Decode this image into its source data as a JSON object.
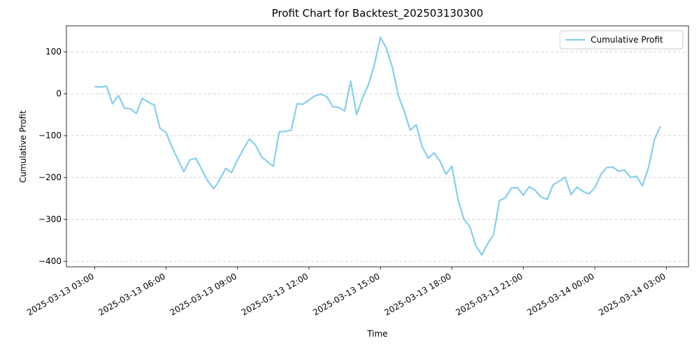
{
  "chart_data": {
    "type": "line",
    "title": "Profit Chart for Backtest_202503130300",
    "x_label": "Time",
    "y_label": "Cumulative Profit",
    "x": [
      "2025-03-13 03:00",
      "2025-03-13 03:15",
      "2025-03-13 03:30",
      "2025-03-13 03:45",
      "2025-03-13 04:00",
      "2025-03-13 04:15",
      "2025-03-13 04:30",
      "2025-03-13 04:45",
      "2025-03-13 05:00",
      "2025-03-13 05:15",
      "2025-03-13 05:30",
      "2025-03-13 05:45",
      "2025-03-13 06:00",
      "2025-03-13 06:15",
      "2025-03-13 06:30",
      "2025-03-13 06:45",
      "2025-03-13 07:00",
      "2025-03-13 07:15",
      "2025-03-13 07:30",
      "2025-03-13 07:45",
      "2025-03-13 08:00",
      "2025-03-13 08:15",
      "2025-03-13 08:30",
      "2025-03-13 08:45",
      "2025-03-13 09:00",
      "2025-03-13 09:15",
      "2025-03-13 09:30",
      "2025-03-13 09:45",
      "2025-03-13 10:00",
      "2025-03-13 10:15",
      "2025-03-13 10:30",
      "2025-03-13 10:45",
      "2025-03-13 11:00",
      "2025-03-13 11:15",
      "2025-03-13 11:30",
      "2025-03-13 11:45",
      "2025-03-13 12:00",
      "2025-03-13 12:15",
      "2025-03-13 12:30",
      "2025-03-13 12:45",
      "2025-03-13 13:00",
      "2025-03-13 13:15",
      "2025-03-13 13:30",
      "2025-03-13 13:45",
      "2025-03-13 14:00",
      "2025-03-13 14:15",
      "2025-03-13 14:30",
      "2025-03-13 14:45",
      "2025-03-13 15:00",
      "2025-03-13 15:15",
      "2025-03-13 15:30",
      "2025-03-13 15:45",
      "2025-03-13 16:00",
      "2025-03-13 16:15",
      "2025-03-13 16:30",
      "2025-03-13 16:45",
      "2025-03-13 17:00",
      "2025-03-13 17:15",
      "2025-03-13 17:30",
      "2025-03-13 17:45",
      "2025-03-13 18:00",
      "2025-03-13 18:15",
      "2025-03-13 18:30",
      "2025-03-13 18:45",
      "2025-03-13 19:00",
      "2025-03-13 19:15",
      "2025-03-13 19:30",
      "2025-03-13 19:45",
      "2025-03-13 20:00",
      "2025-03-13 20:15",
      "2025-03-13 20:30",
      "2025-03-13 20:45",
      "2025-03-13 21:00",
      "2025-03-13 21:15",
      "2025-03-13 21:30",
      "2025-03-13 21:45",
      "2025-03-13 22:00",
      "2025-03-13 22:15",
      "2025-03-13 22:30",
      "2025-03-13 22:45",
      "2025-03-13 23:00",
      "2025-03-13 23:15",
      "2025-03-13 23:30",
      "2025-03-13 23:45",
      "2025-03-14 00:00",
      "2025-03-14 00:15",
      "2025-03-14 00:30",
      "2025-03-14 00:45",
      "2025-03-14 01:00",
      "2025-03-14 01:15",
      "2025-03-14 01:30",
      "2025-03-14 01:45",
      "2025-03-14 02:00",
      "2025-03-14 02:15",
      "2025-03-14 02:30",
      "2025-03-14 02:45"
    ],
    "series": [
      {
        "name": "Cumulative Profit",
        "color": "#87ceeb",
        "values": [
          17,
          16,
          18,
          -24,
          -4,
          -34,
          -36,
          -47,
          -11,
          -20,
          -27,
          -83,
          -92,
          -128,
          -157,
          -186,
          -158,
          -154,
          -181,
          -208,
          -227,
          -206,
          -178,
          -188,
          -158,
          -132,
          -108,
          -122,
          -150,
          -162,
          -173,
          -91,
          -90,
          -87,
          -24,
          -25,
          -15,
          -5,
          -1,
          -7,
          -31,
          -33,
          -41,
          30,
          -50,
          -10,
          22,
          70,
          135,
          108,
          63,
          -4,
          -42,
          -87,
          -74,
          -126,
          -154,
          -141,
          -161,
          -192,
          -173,
          -250,
          -299,
          -317,
          -362,
          -385,
          -358,
          -336,
          -255,
          -248,
          -225,
          -224,
          -242,
          -222,
          -231,
          -247,
          -252,
          -217,
          -209,
          -199,
          -241,
          -223,
          -233,
          -239,
          -225,
          -193,
          -176,
          -175,
          -185,
          -182,
          -200,
          -197,
          -220,
          -177,
          -110,
          -78
        ]
      }
    ],
    "xlim": [
      "2025-03-13 01:49",
      "2025-03-14 03:56"
    ],
    "xticks": [
      "2025-03-13 03:00",
      "2025-03-13 06:00",
      "2025-03-13 09:00",
      "2025-03-13 12:00",
      "2025-03-13 15:00",
      "2025-03-13 18:00",
      "2025-03-13 21:00",
      "2025-03-14 00:00",
      "2025-03-14 03:00"
    ],
    "ylim": [
      -413,
      162
    ],
    "yticks": [
      {
        "value": -400,
        "label": "−400"
      },
      {
        "value": -300,
        "label": "−300"
      },
      {
        "value": -200,
        "label": "−200"
      },
      {
        "value": -100,
        "label": "−100"
      },
      0,
      100
    ],
    "grid": "y",
    "legend": "upper right"
  }
}
